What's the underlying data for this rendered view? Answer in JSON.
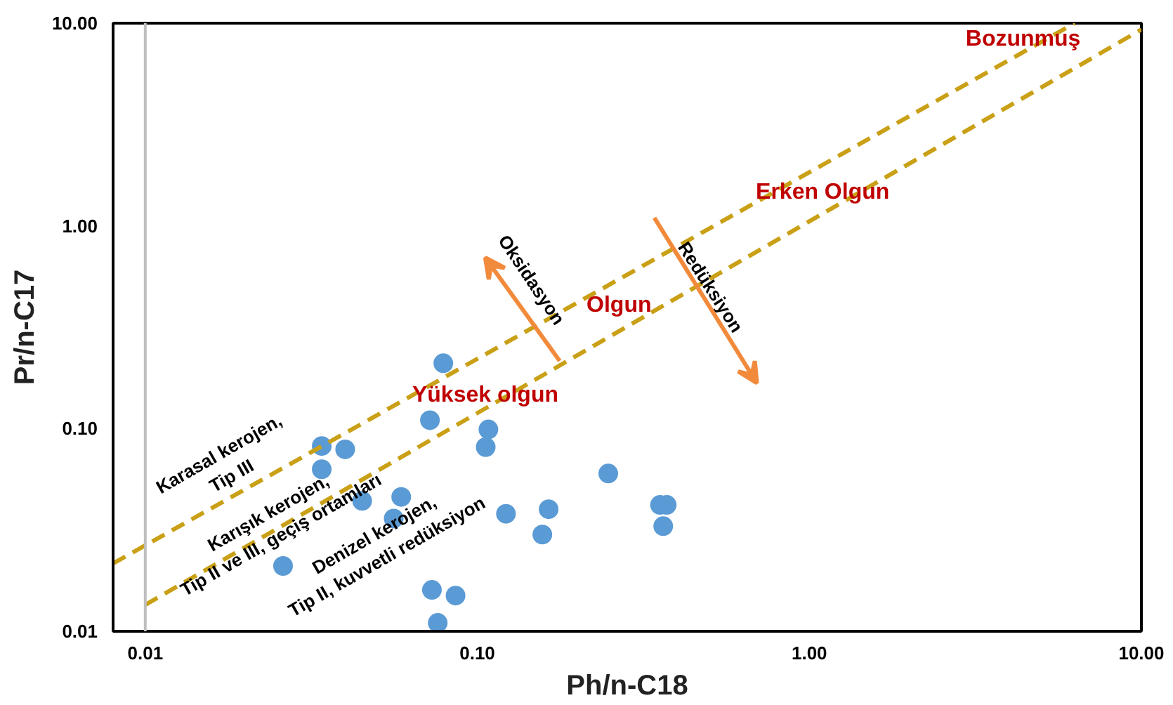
{
  "chart_data": {
    "type": "scatter",
    "xlabel": "Ph/n-C18",
    "ylabel": "Pr/n-C17",
    "log": "xy",
    "grid": false,
    "marker": "circle",
    "xlim": [
      0.008,
      10
    ],
    "ylim": [
      0.01,
      10
    ],
    "xticks": [
      {
        "value": 0.01,
        "label": "0.01"
      },
      {
        "value": 0.1,
        "label": "0.10"
      },
      {
        "value": 1,
        "label": "1.00"
      },
      {
        "value": 10,
        "label": "10.00"
      }
    ],
    "yticks": [
      {
        "value": 0.01,
        "label": "0.01"
      },
      {
        "value": 0.1,
        "label": "0.10"
      },
      {
        "value": 1,
        "label": "1.00"
      },
      {
        "value": 10,
        "label": "10.00"
      }
    ],
    "series": [
      {
        "color": "#5b9bd5",
        "x": [
          0.079,
          0.072,
          0.108,
          0.106,
          0.034,
          0.04,
          0.034,
          0.045,
          0.059,
          0.056,
          0.122,
          0.026,
          0.073,
          0.086,
          0.076,
          0.248,
          0.164,
          0.157,
          0.372,
          0.355,
          0.363
        ],
        "values": [
          0.21,
          0.11,
          0.099,
          0.081,
          0.082,
          0.079,
          0.063,
          0.044,
          0.046,
          0.036,
          0.038,
          0.021,
          0.016,
          0.015,
          0.011,
          0.06,
          0.04,
          0.03,
          0.042,
          0.042,
          0.033
        ]
      },
      {
        "type": "line",
        "line_style": "dashed",
        "marker": "none",
        "color": "#c9a016",
        "x": [
          0.008,
          6.3
        ],
        "values": [
          0.0216,
          10
        ]
      },
      {
        "type": "line",
        "line_style": "dashed",
        "marker": "none",
        "color": "#c9a016",
        "x": [
          0.01,
          10
        ],
        "values": [
          0.0135,
          9.3
        ]
      }
    ],
    "ref_lines": [
      {
        "axis": "x",
        "value": 0.01,
        "color": "#bfbfbf"
      }
    ],
    "annotations": [
      "Bozunmuş",
      "Erken Olgun",
      "Olgun",
      "Yüksek olgun",
      "Karasal kerojen,\nTip III",
      "Karışık kerojen,\nTip II ve III, geçiş ortamları",
      "Denizel kerojen,\nTip II, kuvvetli redüksiyon",
      "Oksidasyon",
      "Redüksiyon"
    ]
  }
}
